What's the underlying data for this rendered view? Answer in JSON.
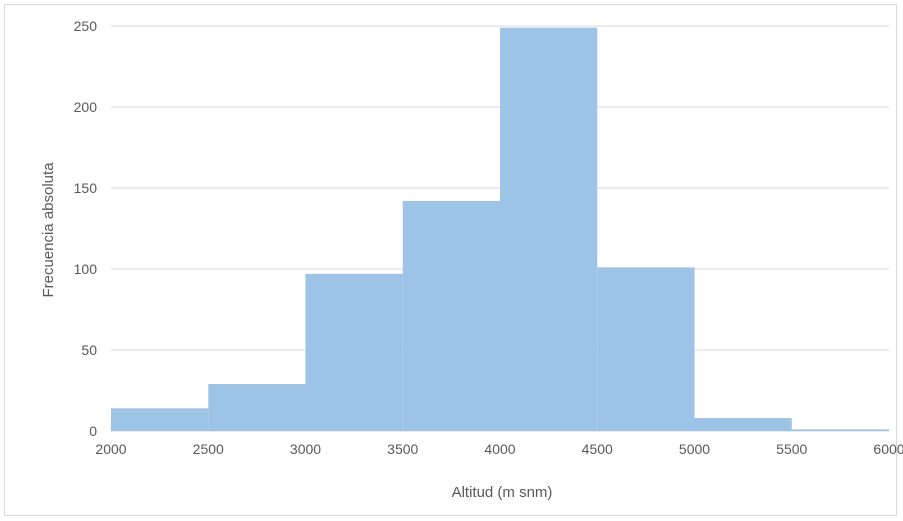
{
  "chart_data": {
    "type": "bar",
    "bins": [
      {
        "x_start": 2000,
        "x_end": 2500,
        "value": 14
      },
      {
        "x_start": 2500,
        "x_end": 3000,
        "value": 29
      },
      {
        "x_start": 3000,
        "x_end": 3500,
        "value": 97
      },
      {
        "x_start": 3500,
        "x_end": 4000,
        "value": 142
      },
      {
        "x_start": 4000,
        "x_end": 4500,
        "value": 249
      },
      {
        "x_start": 4500,
        "x_end": 5000,
        "value": 101
      },
      {
        "x_start": 5000,
        "x_end": 5500,
        "value": 8
      },
      {
        "x_start": 5500,
        "x_end": 6000,
        "value": 1
      }
    ],
    "xlabel": "Altitud (m snm)",
    "ylabel": "Frecuencia absoluta",
    "xlim": [
      2000,
      6000
    ],
    "ylim": [
      0,
      250
    ],
    "x_ticks": [
      "2000",
      "2500",
      "3000",
      "3500",
      "4000",
      "4500",
      "5000",
      "5500",
      "6000"
    ],
    "y_ticks": [
      "0",
      "50",
      "100",
      "150",
      "200",
      "250"
    ],
    "grid": "horizontal",
    "legend": "none",
    "colors": {
      "bar": "#9dc3e6",
      "grid": "#d9d9d9",
      "text": "#595959"
    }
  }
}
